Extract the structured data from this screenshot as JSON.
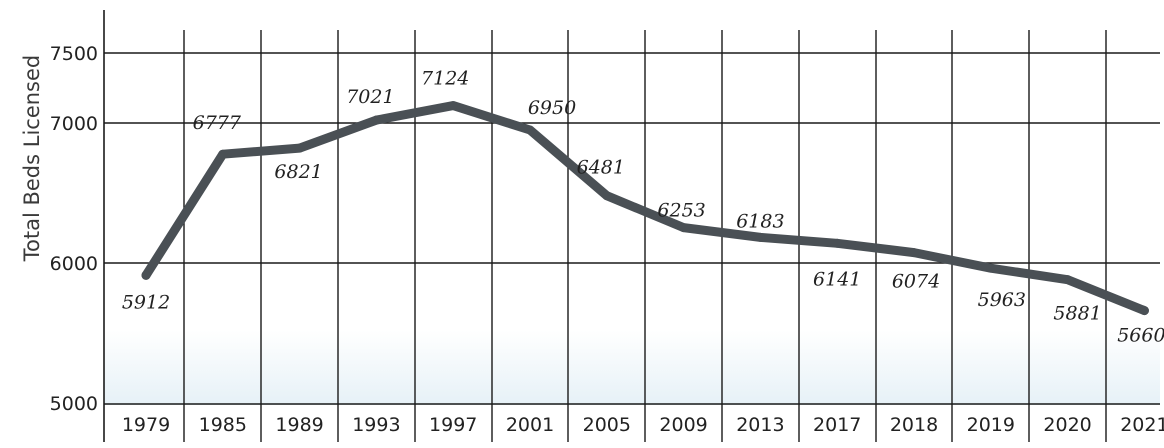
{
  "chart_data": {
    "type": "line",
    "title": "",
    "xlabel": "",
    "ylabel": "Total Beds Licensed",
    "ylim": [
      5000,
      7500
    ],
    "yticks": [
      5000,
      6000,
      7000,
      7500
    ],
    "grid": true,
    "colors": {
      "line": "#4a5055",
      "grid": "#1a1a1a",
      "band": "#e9f3f8"
    },
    "categories": [
      "1979",
      "1985",
      "1989",
      "1993",
      "1997",
      "2001",
      "2005",
      "2009",
      "2013",
      "2017",
      "2018",
      "2019",
      "2020",
      "2021"
    ],
    "series": [
      {
        "values": [
          5912,
          6777,
          6821,
          7021,
          7124,
          6950,
          6481,
          6253,
          6183,
          6141,
          6074,
          5963,
          5881,
          5660
        ],
        "labels": [
          "5912",
          "6777",
          "6821",
          "7021",
          "7124",
          "6950",
          "6481",
          "6253",
          "6183",
          "6141",
          "6074",
          "5963",
          "5881",
          "5660"
        ]
      }
    ]
  }
}
